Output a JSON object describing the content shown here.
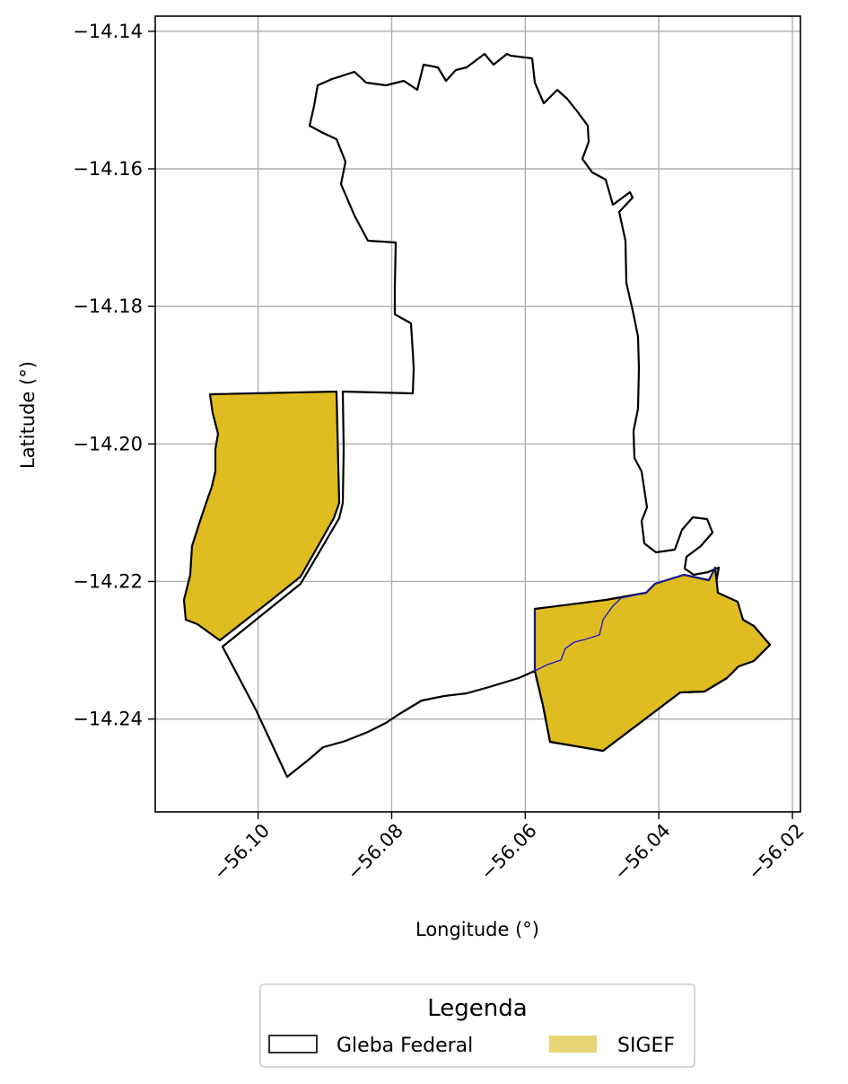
{
  "chart_data": {
    "type": "map",
    "xlabel": "Longitude (°)",
    "ylabel": "Latitude (°)",
    "xlim": [
      -56.1154,
      -56.0188
    ],
    "ylim": [
      -14.2535,
      -14.1378
    ],
    "x_ticks": [
      -56.1,
      -56.08,
      -56.06,
      -56.04,
      -56.02
    ],
    "x_tick_labels": [
      "−56.10",
      "−56.08",
      "−56.06",
      "−56.04",
      "−56.02"
    ],
    "y_ticks": [
      -14.14,
      -14.16,
      -14.18,
      -14.2,
      -14.22,
      -14.24
    ],
    "y_tick_labels": [
      "−14.14",
      "−14.16",
      "−14.18",
      "−14.20",
      "−14.22",
      "−14.24"
    ],
    "grid": true,
    "legend": {
      "title": "Legenda",
      "placement": "bottom-center",
      "entries": [
        {
          "label": "Gleba Federal",
          "style": "outline",
          "edge_color": "#000000",
          "fill_color": "#ffffff"
        },
        {
          "label": "SIGEF",
          "style": "fill",
          "fill_color": "#e8d575"
        }
      ]
    },
    "colors": {
      "sigef_fill": "#dfbd20",
      "sigef_edge": "#1a1acc",
      "gleba_edge": "#000000",
      "grid": "#b0b0b0"
    },
    "layers": [
      {
        "name": "Gleba Federal",
        "coordinates": [
          [
            -56.0647,
            -14.1429
          ],
          [
            -56.0626,
            -14.1427
          ],
          [
            -56.059,
            -14.1433
          ],
          [
            -56.0585,
            -14.1467
          ],
          [
            -56.0576,
            -14.1492
          ],
          [
            -56.0566,
            -14.1528
          ],
          [
            -56.0541,
            -14.154
          ],
          [
            -56.0519,
            -14.1564
          ],
          [
            -56.0508,
            -14.1591
          ],
          [
            -56.0506,
            -14.1614
          ],
          [
            -56.0493,
            -14.1624
          ],
          [
            -56.048,
            -14.1634
          ],
          [
            -56.0465,
            -14.165
          ],
          [
            -56.0438,
            -14.1636
          ],
          [
            -56.0438,
            -14.1704
          ],
          [
            -56.0438,
            -14.1758
          ],
          [
            -56.042,
            -14.1852
          ],
          [
            -56.0421,
            -14.1946
          ],
          [
            -56.0415,
            -14.2014
          ],
          [
            -56.0407,
            -14.2079
          ],
          [
            -56.0413,
            -14.21
          ],
          [
            -56.041,
            -14.214
          ],
          [
            -56.0402,
            -14.2149
          ],
          [
            -56.038,
            -14.2144
          ],
          [
            -56.037,
            -14.21
          ],
          [
            -56.0349,
            -14.2091
          ],
          [
            -56.033,
            -14.2111
          ],
          [
            -56.0348,
            -14.2139
          ],
          [
            -56.0361,
            -14.2169
          ],
          [
            -56.0343,
            -14.2182
          ],
          [
            -56.032,
            -14.2178
          ],
          [
            -56.0303,
            -14.2168
          ],
          [
            -56.0286,
            -14.218
          ],
          [
            -56.0277,
            -14.2193
          ],
          [
            -56.0262,
            -14.2213
          ],
          [
            -56.025,
            -14.2248
          ],
          [
            -56.0226,
            -14.2271
          ],
          [
            -56.0228,
            -14.229
          ],
          [
            -56.026,
            -14.2325
          ],
          [
            -56.03,
            -14.2341
          ],
          [
            -56.034,
            -14.2347
          ],
          [
            -56.0381,
            -14.2368
          ],
          [
            -56.0437,
            -14.2389
          ],
          [
            -56.0486,
            -14.2433
          ],
          [
            -56.0539,
            -14.2425
          ],
          [
            -56.057,
            -14.239
          ],
          [
            -56.0584,
            -14.232
          ],
          [
            -56.06,
            -14.2318
          ],
          [
            -56.0645,
            -14.2338
          ],
          [
            -56.069,
            -14.235
          ],
          [
            -56.074,
            -14.2363
          ],
          [
            -56.079,
            -14.2385
          ],
          [
            -56.084,
            -14.2405
          ],
          [
            -56.089,
            -14.2438
          ],
          [
            -56.093,
            -14.246
          ],
          [
            -56.0956,
            -14.2474
          ],
          [
            -56.1005,
            -14.2347
          ],
          [
            -56.1055,
            -14.2284
          ],
          [
            -56.1048,
            -14.2278
          ],
          [
            -56.0975,
            -14.2218
          ],
          [
            -56.094,
            -14.2188
          ],
          [
            -56.0905,
            -14.2125
          ],
          [
            -56.0883,
            -14.2083
          ],
          [
            -56.0881,
            -14.2015
          ],
          [
            -56.088,
            -14.1915
          ],
          [
            -56.083,
            -14.1917
          ],
          [
            -56.077,
            -14.1917
          ],
          [
            -56.077,
            -14.1895
          ],
          [
            -56.0775,
            -14.1846
          ],
          [
            -56.077,
            -14.1815
          ],
          [
            -56.0755,
            -14.18
          ],
          [
            -56.074,
            -14.1793
          ],
          [
            -56.0743,
            -14.1745
          ],
          [
            -56.0738,
            -14.1715
          ],
          [
            -56.0743,
            -14.1695
          ],
          [
            -56.0745,
            -14.1673
          ],
          [
            -56.0755,
            -14.165
          ],
          [
            -56.079,
            -14.1635
          ],
          [
            -56.0805,
            -14.161
          ],
          [
            -56.0825,
            -14.158
          ],
          [
            -56.0855,
            -14.155
          ],
          [
            -56.0875,
            -14.152
          ],
          [
            -56.089,
            -14.1515
          ],
          [
            -56.091,
            -14.15
          ],
          [
            -56.092,
            -14.1475
          ],
          [
            -56.0922,
            -14.1453
          ],
          [
            -56.093,
            -14.144
          ],
          [
            -56.0935,
            -14.1425
          ],
          [
            -56.0918,
            -14.141
          ],
          [
            -56.0902,
            -14.1407
          ],
          [
            -56.088,
            -14.1404
          ],
          [
            -56.087,
            -14.14
          ],
          [
            -56.0852,
            -14.1395
          ],
          [
            -56.0838,
            -14.1403
          ],
          [
            -56.082,
            -14.14
          ],
          [
            -56.08,
            -14.1395
          ],
          [
            -56.078,
            -14.139
          ],
          [
            -56.076,
            -14.138
          ],
          [
            -56.0735,
            -14.1375
          ],
          [
            -56.0718,
            -14.1362
          ],
          [
            -56.07,
            -14.1358
          ],
          [
            -56.068,
            -14.1356
          ],
          [
            -56.0663,
            -14.1359
          ],
          [
            -56.0647,
            -14.1429
          ]
        ]
      },
      {
        "name": "SIGEF",
        "coordinates": [
          [
            -56.1065,
            -14.1923
          ],
          [
            -56.0883,
            -14.1915
          ],
          [
            -56.0882,
            -14.2075
          ],
          [
            -56.0862,
            -14.212
          ],
          [
            -56.083,
            -14.217
          ],
          [
            -56.08,
            -14.2198
          ],
          [
            -56.0985,
            -14.223
          ],
          [
            -56.105,
            -14.228
          ],
          [
            -56.1082,
            -14.225
          ],
          [
            -56.108,
            -14.218
          ],
          [
            -56.106,
            -14.211
          ],
          [
            -56.1055,
            -14.204
          ],
          [
            -56.106,
            -14.199
          ],
          [
            -56.1055,
            -14.194
          ],
          [
            -56.1065,
            -14.1923
          ]
        ]
      }
    ]
  }
}
